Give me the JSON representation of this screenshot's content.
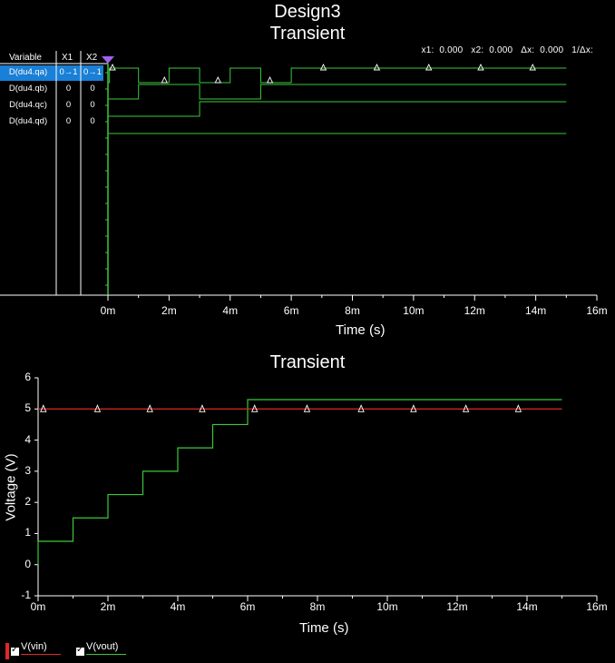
{
  "window_title": "Design3",
  "digital_plot": {
    "title": "Transient",
    "cursor_readout": "x1:  0.000   x2:  0.000   Δx:  0.000   1/Δx:",
    "variable_table": {
      "headers": [
        "Variable",
        "X1",
        "X2"
      ],
      "rows": [
        {
          "name": "D(du4.qa)",
          "x1": "0→1",
          "x2": "0→1",
          "selected": true
        },
        {
          "name": "D(du4.qb)",
          "x1": "0",
          "x2": "0",
          "selected": false
        },
        {
          "name": "D(du4.qc)",
          "x1": "0",
          "x2": "0",
          "selected": false
        },
        {
          "name": "D(du4.qd)",
          "x1": "0",
          "x2": "0",
          "selected": false
        }
      ]
    },
    "x_ticks": [
      "0m",
      "2m",
      "4m",
      "6m",
      "8m",
      "10m",
      "12m",
      "14m",
      "16m"
    ],
    "xlabel": "Time (s)",
    "color": "#3cc83c"
  },
  "chart_data": {
    "type": "line",
    "title": "Transient",
    "xlabel": "Time (s)",
    "ylabel": "Voltage (V)",
    "xlim": [
      0,
      16
    ],
    "ylim": [
      -1,
      6
    ],
    "x_ticks": [
      "0m",
      "2m",
      "4m",
      "6m",
      "8m",
      "10m",
      "12m",
      "14m",
      "16m"
    ],
    "y_ticks": [
      "-1",
      "0",
      "1",
      "2",
      "3",
      "4",
      "5",
      "6"
    ],
    "series": [
      {
        "name": "V(vin)",
        "color": "#e02828",
        "x": [
          0,
          15
        ],
        "y": [
          5,
          5
        ],
        "markers_x": [
          0.15,
          1.7,
          3.2,
          4.7,
          6.2,
          7.7,
          9.25,
          10.75,
          12.25,
          13.75
        ]
      },
      {
        "name": "V(vout)",
        "color": "#3cc83c",
        "step_x": [
          0,
          1,
          2,
          3,
          4,
          5,
          6,
          15
        ],
        "step_y": [
          0.75,
          1.5,
          2.25,
          3.0,
          3.75,
          4.5,
          5.3,
          5.3
        ]
      }
    ],
    "legend_placement": "bottom-left"
  }
}
